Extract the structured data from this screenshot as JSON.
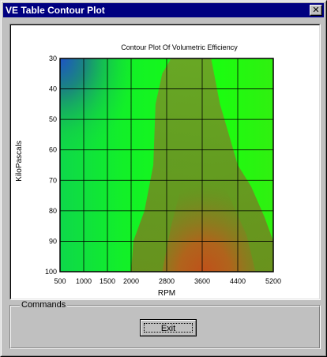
{
  "window": {
    "title": "VE Table Contour Plot",
    "close_glyph": "✕"
  },
  "commands": {
    "group_label": "Commands",
    "exit_label": "Exit"
  },
  "chart_data": {
    "type": "heatmap",
    "title": "Contour Plot Of Volumetric Efficiency",
    "xlabel": "RPM",
    "ylabel": "KiloPascals",
    "x_ticks": [
      500,
      1000,
      1500,
      2000,
      2800,
      3600,
      4400,
      5200
    ],
    "y_ticks": [
      30,
      40,
      50,
      60,
      70,
      80,
      90,
      100
    ],
    "xlim": [
      500,
      5200
    ],
    "ylim": [
      30,
      100
    ],
    "y_inverted": true,
    "grid": true,
    "colors": {
      "low": "#1e52c8",
      "mid": "#22ff1e",
      "high": "#c0501a"
    }
  }
}
